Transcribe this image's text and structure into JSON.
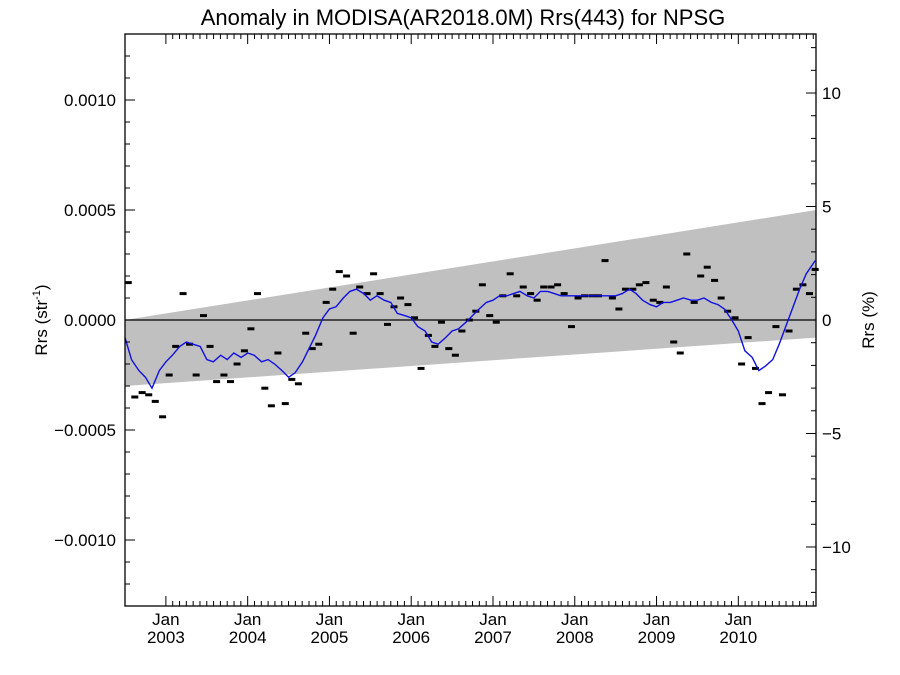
{
  "chart_data": {
    "type": "scatter",
    "title": "Anomaly in MODISA(AR2018.0M) Rrs(443) for NPSG",
    "ylabel": "Rrs (str",
    "ylabel_exponent": "-1",
    "ylabel_suffix": ")",
    "ylabel_right": "Rrs (%)",
    "xlim": [
      2002.5,
      2010.95
    ],
    "ylim": [
      -0.0013,
      0.0013
    ],
    "y2lim": [
      -12.6,
      12.6
    ],
    "x_major_ticks": [
      {
        "x": 2003.0,
        "month": "Jan",
        "year": "2003"
      },
      {
        "x": 2004.0,
        "month": "Jan",
        "year": "2004"
      },
      {
        "x": 2005.0,
        "month": "Jan",
        "year": "2005"
      },
      {
        "x": 2006.0,
        "month": "Jan",
        "year": "2006"
      },
      {
        "x": 2007.0,
        "month": "Jan",
        "year": "2007"
      },
      {
        "x": 2008.0,
        "month": "Jan",
        "year": "2008"
      },
      {
        "x": 2009.0,
        "month": "Jan",
        "year": "2009"
      },
      {
        "x": 2010.0,
        "month": "Jan",
        "year": "2010"
      }
    ],
    "y_ticks": [
      {
        "value": 0.001,
        "label": "0.0010"
      },
      {
        "value": 0.0005,
        "label": "0.0005"
      },
      {
        "value": 0.0,
        "label": "0.0000"
      },
      {
        "value": -0.0005,
        "label": "−0.0005"
      },
      {
        "value": -0.001,
        "label": "−0.0010"
      }
    ],
    "y2_ticks": [
      {
        "value": 10,
        "label": "10"
      },
      {
        "value": 5,
        "label": "5"
      },
      {
        "value": 0,
        "label": "0"
      },
      {
        "value": -5,
        "label": "−5"
      },
      {
        "value": -10,
        "label": "−10"
      }
    ],
    "band": {
      "color": "#c0c0c0",
      "upper": [
        [
          2002.5,
          0.0
        ],
        [
          2010.95,
          0.0005
        ]
      ],
      "lower": [
        [
          2002.5,
          -0.0003
        ],
        [
          2010.95,
          -8e-05
        ]
      ]
    },
    "zero_line": true,
    "series": [
      {
        "type": "marker",
        "color": "#000000",
        "points": [
          [
            2002.54,
            0.00017
          ],
          [
            2002.62,
            -0.00035
          ],
          [
            2002.71,
            -0.00033
          ],
          [
            2002.79,
            -0.00034
          ],
          [
            2002.87,
            -0.00037
          ],
          [
            2002.96,
            -0.00044
          ],
          [
            2003.04,
            -0.00025
          ],
          [
            2003.12,
            -0.00012
          ],
          [
            2003.21,
            0.00012
          ],
          [
            2003.29,
            -0.00011
          ],
          [
            2003.37,
            -0.00025
          ],
          [
            2003.46,
            2e-05
          ],
          [
            2003.54,
            -0.00012
          ],
          [
            2003.62,
            -0.00028
          ],
          [
            2003.71,
            -0.00025
          ],
          [
            2003.79,
            -0.00028
          ],
          [
            2003.87,
            -0.0002
          ],
          [
            2003.96,
            -0.00014
          ],
          [
            2004.04,
            -4e-05
          ],
          [
            2004.12,
            0.00012
          ],
          [
            2004.21,
            -0.00031
          ],
          [
            2004.29,
            -0.00039
          ],
          [
            2004.37,
            -0.00015
          ],
          [
            2004.46,
            -0.00038
          ],
          [
            2004.54,
            -0.00027
          ],
          [
            2004.62,
            -0.00029
          ],
          [
            2004.71,
            -6e-05
          ],
          [
            2004.79,
            -0.00013
          ],
          [
            2004.87,
            -0.00011
          ],
          [
            2004.96,
            8e-05
          ],
          [
            2005.04,
            0.00014
          ],
          [
            2005.12,
            0.00022
          ],
          [
            2005.21,
            0.0002
          ],
          [
            2005.29,
            -6e-05
          ],
          [
            2005.37,
            0.00015
          ],
          [
            2005.46,
            0.00012
          ],
          [
            2005.54,
            0.00021
          ],
          [
            2005.62,
            0.00012
          ],
          [
            2005.71,
            -2e-05
          ],
          [
            2005.79,
            6e-05
          ],
          [
            2005.87,
            0.0001
          ],
          [
            2005.96,
            7e-05
          ],
          [
            2006.04,
            1e-05
          ],
          [
            2006.12,
            -0.00022
          ],
          [
            2006.21,
            -7e-05
          ],
          [
            2006.29,
            -0.00012
          ],
          [
            2006.37,
            -1e-05
          ],
          [
            2006.46,
            -0.00013
          ],
          [
            2006.54,
            -0.00016
          ],
          [
            2006.62,
            -5e-05
          ],
          [
            2006.71,
            0.0
          ],
          [
            2006.79,
            4e-05
          ],
          [
            2006.87,
            0.00016
          ],
          [
            2006.96,
            2e-05
          ],
          [
            2007.04,
            -1e-05
          ],
          [
            2007.12,
            0.00011
          ],
          [
            2007.21,
            0.00021
          ],
          [
            2007.29,
            0.00011
          ],
          [
            2007.37,
            0.00015
          ],
          [
            2007.46,
            0.00012
          ],
          [
            2007.54,
            9e-05
          ],
          [
            2007.62,
            0.00015
          ],
          [
            2007.71,
            0.00015
          ],
          [
            2007.79,
            0.00016
          ],
          [
            2007.87,
            0.00012
          ],
          [
            2007.96,
            -3e-05
          ],
          [
            2008.04,
            0.0001
          ],
          [
            2008.12,
            0.00011
          ],
          [
            2008.21,
            0.00011
          ],
          [
            2008.29,
            0.00011
          ],
          [
            2008.37,
            0.00027
          ],
          [
            2008.46,
            0.0001
          ],
          [
            2008.54,
            5e-05
          ],
          [
            2008.62,
            0.00014
          ],
          [
            2008.71,
            0.00014
          ],
          [
            2008.79,
            0.00016
          ],
          [
            2008.87,
            0.00017
          ],
          [
            2008.96,
            9e-05
          ],
          [
            2009.04,
            8e-05
          ],
          [
            2009.12,
            0.00015
          ],
          [
            2009.21,
            -0.0001
          ],
          [
            2009.29,
            -0.00015
          ],
          [
            2009.37,
            0.0003
          ],
          [
            2009.46,
            8e-05
          ],
          [
            2009.54,
            0.0002
          ],
          [
            2009.62,
            0.00024
          ],
          [
            2009.71,
            0.00018
          ],
          [
            2009.79,
            0.0001
          ],
          [
            2009.87,
            4e-05
          ],
          [
            2009.96,
            1e-05
          ],
          [
            2010.04,
            -0.0002
          ],
          [
            2010.12,
            -8e-05
          ],
          [
            2010.21,
            -0.00022
          ],
          [
            2010.29,
            -0.00038
          ],
          [
            2010.37,
            -0.00033
          ],
          [
            2010.46,
            -3e-05
          ],
          [
            2010.54,
            -0.00034
          ],
          [
            2010.62,
            -5e-05
          ],
          [
            2010.71,
            0.00014
          ],
          [
            2010.79,
            0.00016
          ],
          [
            2010.87,
            0.00012
          ],
          [
            2010.94,
            0.00023
          ]
        ]
      },
      {
        "type": "line",
        "color": "#1010e0",
        "points": [
          [
            2002.5,
            -8e-05
          ],
          [
            2002.58,
            -0.00018
          ],
          [
            2002.67,
            -0.00023
          ],
          [
            2002.75,
            -0.00026
          ],
          [
            2002.83,
            -0.00031
          ],
          [
            2002.92,
            -0.00023
          ],
          [
            2003.0,
            -0.00019
          ],
          [
            2003.08,
            -0.00016
          ],
          [
            2003.17,
            -0.00012
          ],
          [
            2003.25,
            -0.0001
          ],
          [
            2003.33,
            -0.00011
          ],
          [
            2003.42,
            -0.00012
          ],
          [
            2003.5,
            -0.00018
          ],
          [
            2003.58,
            -0.00019
          ],
          [
            2003.67,
            -0.00016
          ],
          [
            2003.75,
            -0.00018
          ],
          [
            2003.83,
            -0.00015
          ],
          [
            2003.92,
            -0.00017
          ],
          [
            2004.0,
            -0.00015
          ],
          [
            2004.08,
            -0.00016
          ],
          [
            2004.17,
            -0.00019
          ],
          [
            2004.25,
            -0.00018
          ],
          [
            2004.33,
            -0.0002
          ],
          [
            2004.42,
            -0.00023
          ],
          [
            2004.5,
            -0.00026
          ],
          [
            2004.58,
            -0.00024
          ],
          [
            2004.67,
            -0.00019
          ],
          [
            2004.75,
            -0.00013
          ],
          [
            2004.83,
            -7e-05
          ],
          [
            2004.92,
            1e-05
          ],
          [
            2005.0,
            5e-05
          ],
          [
            2005.08,
            6e-05
          ],
          [
            2005.17,
            0.0001
          ],
          [
            2005.25,
            0.00013
          ],
          [
            2005.33,
            0.00014
          ],
          [
            2005.42,
            0.00012
          ],
          [
            2005.5,
            9e-05
          ],
          [
            2005.58,
            0.00011
          ],
          [
            2005.67,
            9e-05
          ],
          [
            2005.75,
            8e-05
          ],
          [
            2005.83,
            3e-05
          ],
          [
            2005.92,
            2e-05
          ],
          [
            2006.0,
            1e-05
          ],
          [
            2006.08,
            -3e-05
          ],
          [
            2006.17,
            -5e-05
          ],
          [
            2006.25,
            -0.0001
          ],
          [
            2006.33,
            -0.00011
          ],
          [
            2006.42,
            -8e-05
          ],
          [
            2006.5,
            -5e-05
          ],
          [
            2006.58,
            -4e-05
          ],
          [
            2006.67,
            -1e-05
          ],
          [
            2006.75,
            2e-05
          ],
          [
            2006.83,
            5e-05
          ],
          [
            2006.92,
            8e-05
          ],
          [
            2007.0,
            9e-05
          ],
          [
            2007.08,
            0.00011
          ],
          [
            2007.17,
            0.00011
          ],
          [
            2007.25,
            0.00012
          ],
          [
            2007.33,
            0.00013
          ],
          [
            2007.42,
            0.00011
          ],
          [
            2007.5,
            0.0001
          ],
          [
            2007.58,
            0.00013
          ],
          [
            2007.67,
            0.00013
          ],
          [
            2007.75,
            0.00012
          ],
          [
            2007.83,
            0.00011
          ],
          [
            2007.92,
            0.00011
          ],
          [
            2008.0,
            0.00011
          ],
          [
            2008.08,
            0.00011
          ],
          [
            2008.17,
            0.00011
          ],
          [
            2008.25,
            0.00011
          ],
          [
            2008.33,
            0.00011
          ],
          [
            2008.42,
            0.00011
          ],
          [
            2008.5,
            0.00011
          ],
          [
            2008.58,
            0.00012
          ],
          [
            2008.67,
            0.00014
          ],
          [
            2008.75,
            0.00012
          ],
          [
            2008.83,
            9e-05
          ],
          [
            2008.92,
            7e-05
          ],
          [
            2009.0,
            6e-05
          ],
          [
            2009.08,
            8e-05
          ],
          [
            2009.17,
            8e-05
          ],
          [
            2009.25,
            9e-05
          ],
          [
            2009.33,
            0.0001
          ],
          [
            2009.42,
            9e-05
          ],
          [
            2009.5,
            9e-05
          ],
          [
            2009.58,
            0.0001
          ],
          [
            2009.67,
            8e-05
          ],
          [
            2009.75,
            7e-05
          ],
          [
            2009.83,
            5e-05
          ],
          [
            2009.92,
            0.0
          ],
          [
            2010.0,
            -5e-05
          ],
          [
            2010.08,
            -0.00014
          ],
          [
            2010.17,
            -0.00017
          ],
          [
            2010.25,
            -0.00023
          ],
          [
            2010.33,
            -0.00021
          ],
          [
            2010.42,
            -0.00018
          ],
          [
            2010.5,
            -0.00011
          ],
          [
            2010.58,
            -3e-05
          ],
          [
            2010.67,
            6e-05
          ],
          [
            2010.75,
            0.00014
          ],
          [
            2010.83,
            0.00021
          ],
          [
            2010.94,
            0.00027
          ]
        ]
      }
    ]
  }
}
